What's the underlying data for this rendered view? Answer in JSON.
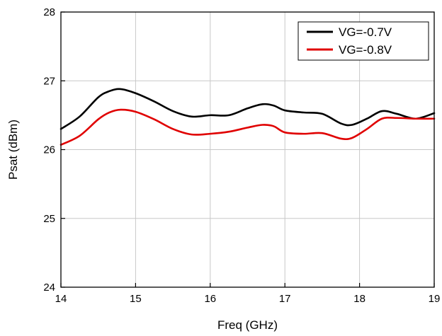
{
  "chart_data": {
    "type": "line",
    "title": "",
    "xlabel": "Freq (GHz)",
    "ylabel": "Psat (dBm)",
    "xlim": [
      14,
      19
    ],
    "ylim": [
      24,
      28
    ],
    "xticks": [
      14,
      15,
      16,
      17,
      18,
      19
    ],
    "yticks": [
      24,
      25,
      26,
      27,
      28
    ],
    "grid": true,
    "legend_position": "top-right",
    "series": [
      {
        "name": "VG=-0.7V",
        "color": "#000000",
        "x": [
          14.0,
          14.25,
          14.5,
          14.65,
          14.8,
          15.0,
          15.25,
          15.5,
          15.75,
          16.0,
          16.25,
          16.5,
          16.7,
          16.85,
          17.0,
          17.25,
          17.5,
          17.75,
          17.9,
          18.1,
          18.3,
          18.5,
          18.75,
          19.0
        ],
        "y": [
          26.3,
          26.48,
          26.76,
          26.85,
          26.88,
          26.82,
          26.7,
          26.56,
          26.48,
          26.5,
          26.5,
          26.6,
          26.66,
          26.64,
          26.57,
          26.54,
          26.52,
          26.38,
          26.36,
          26.45,
          26.56,
          26.52,
          26.45,
          26.53
        ]
      },
      {
        "name": "VG=-0.8V",
        "color": "#e00000",
        "x": [
          14.0,
          14.25,
          14.5,
          14.65,
          14.8,
          15.0,
          15.25,
          15.5,
          15.75,
          16.0,
          16.25,
          16.5,
          16.7,
          16.85,
          17.0,
          17.25,
          17.5,
          17.75,
          17.9,
          18.1,
          18.3,
          18.5,
          18.75,
          19.0
        ],
        "y": [
          26.07,
          26.2,
          26.44,
          26.54,
          26.58,
          26.55,
          26.44,
          26.3,
          26.22,
          26.23,
          26.26,
          26.32,
          26.36,
          26.34,
          26.25,
          26.23,
          26.24,
          26.16,
          26.17,
          26.3,
          26.45,
          26.46,
          26.45,
          26.45
        ]
      }
    ]
  }
}
